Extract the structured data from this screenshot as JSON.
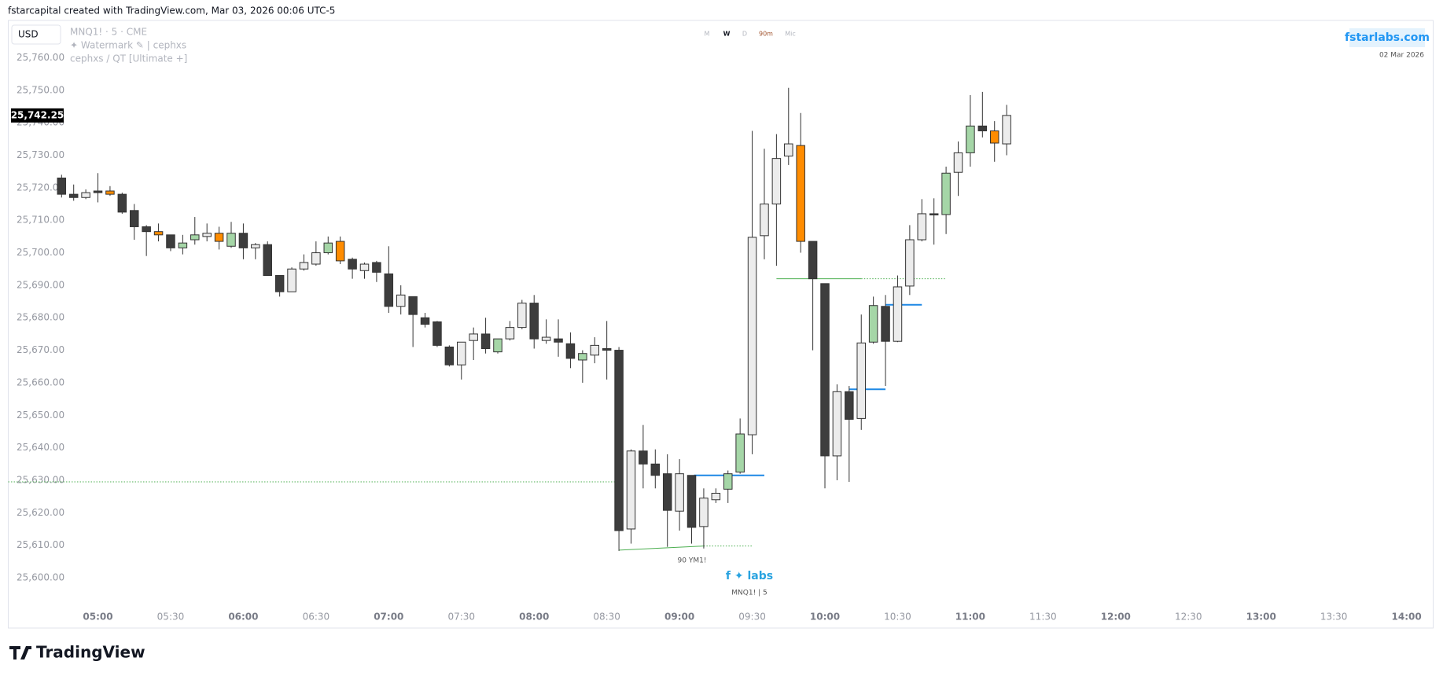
{
  "header": "fstarcapital created with TradingView.com, Mar 03, 2026 00:06 UTC-5",
  "footer_logo": "TradingView",
  "chart_data": {
    "type": "candlestick",
    "currency": "USD",
    "symbol_line": "MNQ1! · 5 · CME",
    "watermark_line": "✦ Watermark ✎ | cephxs",
    "indicator_line": "cephxs / QT [Ultimate +]",
    "timeframes": [
      "M",
      "W",
      "D",
      "90m",
      "Mic"
    ],
    "brand": "fstarlabs.com",
    "brand_date": "02 Mar 2026",
    "last_price_label": "25,742.25",
    "annotation": "90 YM1!",
    "logo_text": "f ✦ labs",
    "logo_subtext": "MNQ1! | 5",
    "x": [
      "04:45",
      "04:50",
      "04:55",
      "05:00",
      "05:05",
      "05:10",
      "05:15",
      "05:20",
      "05:25",
      "05:30",
      "05:35",
      "05:40",
      "05:45",
      "05:50",
      "05:55",
      "06:00",
      "06:05",
      "06:10",
      "06:15",
      "06:20",
      "06:25",
      "06:30",
      "06:35",
      "06:40",
      "06:45",
      "06:50",
      "06:55",
      "07:00",
      "07:05",
      "07:10",
      "07:15",
      "07:20",
      "07:25",
      "07:30",
      "07:35",
      "07:40",
      "07:45",
      "07:50",
      "07:55",
      "08:00",
      "08:05",
      "08:10",
      "08:15",
      "08:20",
      "08:25",
      "08:30",
      "08:35",
      "08:40",
      "08:45",
      "08:50",
      "08:55",
      "09:00",
      "09:05",
      "09:10",
      "09:15",
      "09:20",
      "09:25",
      "09:30",
      "09:35",
      "09:40",
      "09:45",
      "09:50",
      "09:55",
      "10:00",
      "10:05",
      "10:10",
      "10:15",
      "10:20",
      "10:25",
      "10:30",
      "10:35",
      "10:40",
      "10:45",
      "10:50",
      "10:55",
      "11:00",
      "11:05",
      "11:10",
      "11:15"
    ],
    "open": [
      25723,
      25718,
      25717,
      25719,
      25719,
      25718,
      25713,
      25708,
      25706.5,
      25705.5,
      25701.5,
      25704,
      25705,
      25706,
      25702,
      25706,
      25701.5,
      25702.5,
      25693,
      25688,
      25695,
      25696.5,
      25700,
      25703.5,
      25698,
      25694.5,
      25697,
      25693.5,
      25683.5,
      25686.5,
      25680,
      25678.75,
      25671,
      25665.5,
      25673,
      25675,
      25669.5,
      25673.5,
      25677,
      25684.5,
      25673,
      25673.5,
      25672,
      25667,
      25668.5,
      25670.5,
      25670,
      25615,
      25639,
      25635,
      25632,
      25620.5,
      25631.5,
      25615.75,
      25624,
      25627.25,
      25632.5,
      25644,
      25705.25,
      25715,
      25729.75,
      25733,
      25703.5,
      25690.5,
      25637.5,
      25657.25,
      25649,
      25672.5,
      25683.5,
      25672.75,
      25689.75,
      25704,
      25712,
      25711.75,
      25724.75,
      25730.75,
      25739,
      25737.5,
      25733.5
    ],
    "high": [
      25724,
      25721,
      25719.5,
      25724.5,
      25720.5,
      25718.5,
      25715,
      25708.5,
      25709,
      25705.5,
      25705.5,
      25711,
      25709,
      25708,
      25709.5,
      25709,
      25703,
      25703.5,
      25693,
      25695.5,
      25699.5,
      25703.5,
      25705,
      25705,
      25698.5,
      25697,
      25697.5,
      25702,
      25690,
      25686.5,
      25681.5,
      25679,
      25671.5,
      25672.5,
      25677,
      25680,
      25673.5,
      25679,
      25685.5,
      25687,
      25679.5,
      25679.5,
      25675.5,
      25670,
      25674,
      25679,
      25671,
      25639.5,
      25647,
      25639.5,
      25638,
      25636.5,
      25631.5,
      25627.5,
      25627.5,
      25633,
      25649,
      25737.5,
      25732,
      25736.5,
      25750.75,
      25743,
      25703.5,
      25690.5,
      25659.5,
      25659,
      25681,
      25686.5,
      25687,
      25693,
      25708.5,
      25716.5,
      25716.75,
      25726.5,
      25734.25,
      25748.5,
      25749.5,
      25740.5,
      25745.5
    ],
    "low": [
      25717,
      25716,
      25716.5,
      25715.5,
      25717.5,
      25712,
      25704,
      25699,
      25703.5,
      25700.5,
      25699.5,
      25702.5,
      25703.5,
      25701,
      25701.5,
      25698,
      25698,
      25693,
      25686.5,
      25688,
      25694.5,
      25696,
      25699.5,
      25696.5,
      25692,
      25692,
      25691,
      25681.5,
      25681,
      25671,
      25677,
      25671,
      25665,
      25661,
      25667,
      25669,
      25669,
      25673,
      25676.5,
      25670.5,
      25672,
      25668,
      25664.5,
      25660,
      25666,
      25661,
      25608.25,
      25610.5,
      25627.5,
      25627.5,
      25609.5,
      25614.5,
      25610.5,
      25609,
      25623,
      25623,
      25632,
      25638,
      25698,
      25696,
      25727,
      25700,
      25670,
      25627.5,
      25630,
      25629.5,
      25645.5,
      25672,
      25659,
      25672.5,
      25687,
      25703.5,
      25702.5,
      25705.75,
      25717.5,
      25726.5,
      25735.5,
      25728,
      25730
    ],
    "close": [
      25718,
      25717,
      25718.5,
      25718.5,
      25718,
      25712.5,
      25708,
      25706.5,
      25705.5,
      25701.5,
      25703,
      25705.5,
      25706,
      25703.5,
      25706,
      25701.5,
      25702.5,
      25693,
      25688,
      25695,
      25697,
      25700,
      25703,
      25697.5,
      25695,
      25696.5,
      25694,
      25683.5,
      25687,
      25681,
      25678,
      25671.5,
      25665.5,
      25672.5,
      25675,
      25670.5,
      25673.5,
      25677,
      25684.5,
      25673.5,
      25674,
      25672.5,
      25667.5,
      25669,
      25671.5,
      25670,
      25614.5,
      25639,
      25635,
      25631.5,
      25620.75,
      25632,
      25615.5,
      25624.5,
      25626,
      25632,
      25644.25,
      25704.75,
      25715,
      25729,
      25733.5,
      25703.5,
      25692,
      25637.5,
      25657.25,
      25648.75,
      25672.25,
      25683.75,
      25672.75,
      25689.5,
      25704,
      25712,
      25711.75,
      25724.5,
      25730.75,
      25739,
      25737.5,
      25733.75,
      25742.25
    ],
    "colors": [
      "#3d3d3d",
      "#3d3d3d",
      "#ececec",
      "#3d3d3d",
      "#ff8c00",
      "#3d3d3d",
      "#3d3d3d",
      "#3d3d3d",
      "#ff8c00",
      "#3d3d3d",
      "#a5d6a7",
      "#a5d6a7",
      "#ececec",
      "#ff8c00",
      "#a5d6a7",
      "#3d3d3d",
      "#ececec",
      "#3d3d3d",
      "#3d3d3d",
      "#ececec",
      "#ececec",
      "#ececec",
      "#a5d6a7",
      "#ff8c00",
      "#3d3d3d",
      "#ececec",
      "#3d3d3d",
      "#3d3d3d",
      "#ececec",
      "#3d3d3d",
      "#3d3d3d",
      "#3d3d3d",
      "#3d3d3d",
      "#ececec",
      "#ececec",
      "#3d3d3d",
      "#a5d6a7",
      "#ececec",
      "#ececec",
      "#3d3d3d",
      "#ececec",
      "#3d3d3d",
      "#3d3d3d",
      "#a5d6a7",
      "#ececec",
      "#3d3d3d",
      "#3d3d3d",
      "#ececec",
      "#3d3d3d",
      "#3d3d3d",
      "#3d3d3d",
      "#ececec",
      "#3d3d3d",
      "#ececec",
      "#ececec",
      "#a5d6a7",
      "#a5d6a7",
      "#ececec",
      "#ececec",
      "#ececec",
      "#ececec",
      "#ff8c00",
      "#3d3d3d",
      "#3d3d3d",
      "#ececec",
      "#3d3d3d",
      "#ececec",
      "#a5d6a7",
      "#3d3d3d",
      "#ececec",
      "#ececec",
      "#ececec",
      "#3d3d3d",
      "#a5d6a7",
      "#ececec",
      "#a5d6a7",
      "#3d3d3d",
      "#ff8c00",
      "#ececec"
    ],
    "levels": [
      {
        "start": [
          "04:23",
          25629.5
        ],
        "end": [
          "08:34",
          25629.5
        ],
        "color": "#4caf50",
        "dashed": true
      },
      {
        "start": [
          "08:35",
          25608.5
        ],
        "end": [
          "09:10",
          25609.75
        ],
        "color": "#4caf50",
        "dashed": false
      },
      {
        "start": [
          "09:10",
          25609.75
        ],
        "end": [
          "09:30",
          25609.75
        ],
        "color": "#4caf50",
        "dashed": true
      },
      {
        "start": [
          "09:40",
          25692
        ],
        "end": [
          "10:15",
          25692
        ],
        "color": "#4caf50",
        "dashed": false
      },
      {
        "start": [
          "10:15",
          25692
        ],
        "end": [
          "10:50",
          25692
        ],
        "color": "#4caf50",
        "dashed": true
      },
      {
        "start": [
          "09:06",
          25631.5
        ],
        "end": [
          "09:35",
          25631.5
        ],
        "color": "#1e88e5",
        "dashed": false
      },
      {
        "start": [
          "10:10",
          25658
        ],
        "end": [
          "10:25",
          25658
        ],
        "color": "#1e88e5",
        "dashed": false
      },
      {
        "start": [
          "10:25",
          25684
        ],
        "end": [
          "10:40",
          25684
        ],
        "color": "#1e88e5",
        "dashed": false
      }
    ],
    "xlim": [
      "04:23",
      "14:11"
    ],
    "xticks": [
      "05:00",
      "05:30",
      "06:00",
      "06:30",
      "07:00",
      "07:30",
      "08:00",
      "08:30",
      "09:00",
      "09:30",
      "10:00",
      "10:30",
      "11:00",
      "11:30",
      "12:00",
      "12:30",
      "13:00",
      "13:30",
      "14:00"
    ],
    "ylim": [
      25592.5,
      25771
    ],
    "yticks": [
      {
        "value": 25600,
        "label": "25,600.00"
      },
      {
        "value": 25610,
        "label": "25,610.00"
      },
      {
        "value": 25620,
        "label": "25,620.00"
      },
      {
        "value": 25630,
        "label": "25,630.00"
      },
      {
        "value": 25640,
        "label": "25,640.00"
      },
      {
        "value": 25650,
        "label": "25,650.00"
      },
      {
        "value": 25660,
        "label": "25,660.00"
      },
      {
        "value": 25670,
        "label": "25,670.00"
      },
      {
        "value": 25680,
        "label": "25,680.00"
      },
      {
        "value": 25690,
        "label": "25,690.00"
      },
      {
        "value": 25700,
        "label": "25,700.00"
      },
      {
        "value": 25710,
        "label": "25,710.00"
      },
      {
        "value": 25720,
        "label": "25,720.00"
      },
      {
        "value": 25730,
        "label": "25,730.00"
      },
      {
        "value": 25740,
        "label": "25,740.00"
      },
      {
        "value": 25750,
        "label": "25,750.00"
      },
      {
        "value": 25760,
        "label": "25,760.00"
      }
    ]
  }
}
